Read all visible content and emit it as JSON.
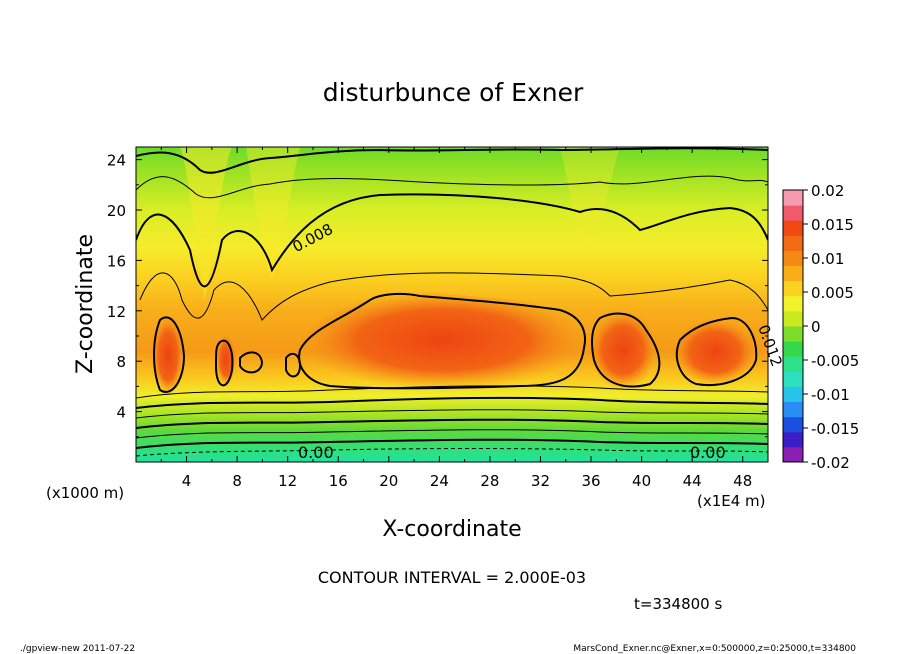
{
  "chart_data": {
    "type": "heatmap",
    "title": "disturbunce of Exner",
    "xlabel": "X-coordinate",
    "ylabel": "Z-coordinate",
    "x_unit": "(x1000 m)",
    "x_scale_note": "(x1E4 m)",
    "xlim": [
      0,
      50
    ],
    "ylim": [
      0,
      25
    ],
    "x_ticks": [
      "4",
      "8",
      "12",
      "16",
      "20",
      "24",
      "28",
      "32",
      "36",
      "40",
      "44",
      "48"
    ],
    "y_ticks": [
      "4",
      "8",
      "12",
      "16",
      "20",
      "24"
    ],
    "colorbar": {
      "range": [
        -0.02,
        0.02
      ],
      "labels": [
        "0.02",
        "0.015",
        "0.01",
        "0.005",
        "0",
        "-0.005",
        "-0.01",
        "-0.015",
        "-0.02"
      ],
      "colors": [
        "#8a1fb0",
        "#3b1ec8",
        "#1a4fe0",
        "#2a8cf5",
        "#27c3e8",
        "#2ce0c0",
        "#2fe08c",
        "#33d94a",
        "#7cde2a",
        "#c8ea1e",
        "#f2f22a",
        "#fbd21f",
        "#f8ae18",
        "#f48a14",
        "#f26a12",
        "#f04a12",
        "#f05a6a",
        "#f59cb0"
      ]
    },
    "contour_labels": [
      "0.008",
      "0.012",
      "0.00",
      "0.00"
    ],
    "contour_interval": "CONTOUR INTERVAL = 2.000E-03",
    "time_label": "t=334800 s",
    "field_profile": {
      "z": [
        0,
        2,
        4,
        6,
        8,
        10,
        12,
        14,
        16,
        18,
        20,
        22,
        24,
        25
      ],
      "value": [
        0.0,
        0.002,
        0.004,
        0.008,
        0.011,
        0.01,
        0.009,
        0.008,
        0.007,
        0.006,
        0.005,
        0.004,
        0.002,
        0.001
      ]
    },
    "maxima": [
      {
        "x": 2.5,
        "z": 8,
        "value": 0.012
      },
      {
        "x": 7,
        "z": 8,
        "value": 0.011
      },
      {
        "x": 9.5,
        "z": 8,
        "value": 0.01
      },
      {
        "x": 25,
        "z": 8,
        "value": 0.013
      },
      {
        "x": 38,
        "z": 8,
        "value": 0.012
      },
      {
        "x": 47,
        "z": 8,
        "value": 0.012
      }
    ]
  },
  "footer": {
    "left": "./gpview-new   2011-07-22",
    "right": "MarsCond_Exner.nc@Exner,x=0:500000,z=0:25000,t=334800"
  }
}
